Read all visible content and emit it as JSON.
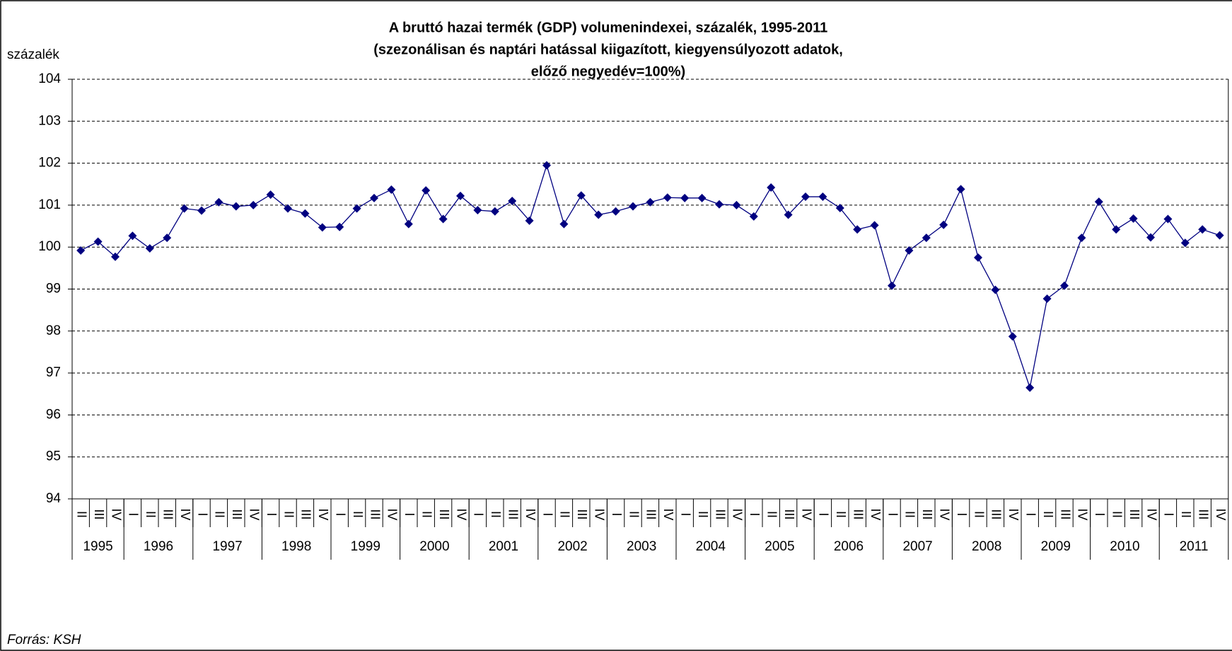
{
  "chart_data": {
    "type": "line",
    "title": "A bruttó hazai termék (GDP) volumenindexei, százalék, 1995-2011",
    "subtitle": [
      "(szezonálisan és naptári hatással kiigazított,  kiegyensúlyozott adatok,",
      "előző negyedév=100%)"
    ],
    "y_label": "százalék",
    "source": "Forrás: KSH",
    "categories": [
      "II",
      "III",
      "IV",
      "I",
      "II",
      "III",
      "IV",
      "I",
      "II",
      "III",
      "IV",
      "I",
      "II",
      "III",
      "IV",
      "I",
      "II",
      "III",
      "IV",
      "I",
      "II",
      "III",
      "IV",
      "I",
      "II",
      "III",
      "IV",
      "I",
      "II",
      "III",
      "IV",
      "I",
      "II",
      "III",
      "IV",
      "I",
      "II",
      "III",
      "IV",
      "I",
      "II",
      "III",
      "IV",
      "I",
      "II",
      "III",
      "IV",
      "I",
      "II",
      "III",
      "IV",
      "I",
      "II",
      "III",
      "IV",
      "I",
      "II",
      "III",
      "IV",
      "I",
      "II",
      "III",
      "IV",
      "I",
      "II",
      "III",
      "IV"
    ],
    "years": [
      "1995",
      "1996",
      "1997",
      "1998",
      "1999",
      "2000",
      "2001",
      "2002",
      "2003",
      "2004",
      "2005",
      "2006",
      "2007",
      "2008",
      "2009",
      "2010",
      "2011"
    ],
    "series": [
      {
        "name": "GDP",
        "color": "#000080",
        "values": [
          99.92,
          100.13,
          99.77,
          100.27,
          99.97,
          100.22,
          100.92,
          100.87,
          101.07,
          100.97,
          101.0,
          101.25,
          100.92,
          100.8,
          100.47,
          100.48,
          100.92,
          101.17,
          101.37,
          100.55,
          101.35,
          100.67,
          101.22,
          100.88,
          100.85,
          101.1,
          100.63,
          101.95,
          100.55,
          101.23,
          100.77,
          100.85,
          100.97,
          101.07,
          101.18,
          101.17,
          101.17,
          101.02,
          101.0,
          100.73,
          101.42,
          100.77,
          101.2,
          101.2,
          100.93,
          100.42,
          100.52,
          99.08,
          99.92,
          100.22,
          100.53,
          101.38,
          99.75,
          98.98,
          97.87,
          96.65,
          98.77,
          99.08,
          100.22,
          101.08,
          100.42,
          100.68,
          100.23,
          100.67,
          100.1,
          100.42,
          100.28
        ]
      }
    ],
    "ylim": [
      94,
      104
    ],
    "yticks": [
      94,
      95,
      96,
      97,
      98,
      99,
      100,
      101,
      102,
      103,
      104
    ],
    "grid": true
  }
}
